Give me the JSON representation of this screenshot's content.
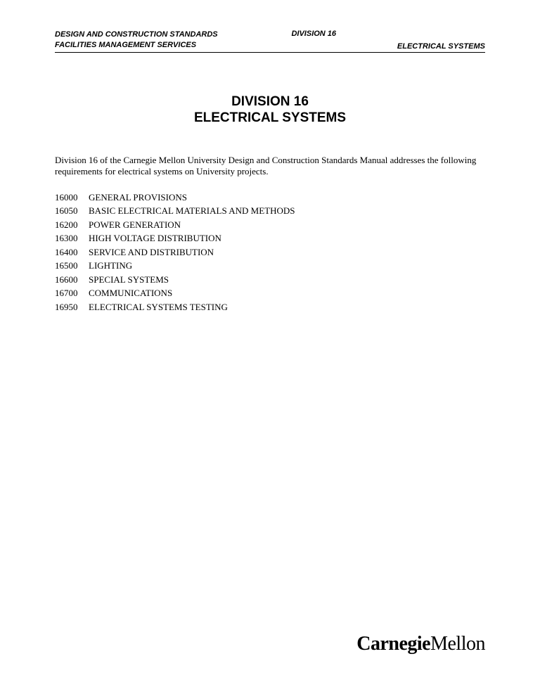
{
  "header": {
    "left_line1": "DESIGN AND CONSTRUCTION STANDARDS",
    "left_line2": "FACILITIES MANAGEMENT SERVICES",
    "center": "DIVISION 16",
    "right": "ELECTRICAL SYSTEMS"
  },
  "title": {
    "line1": "DIVISION 16",
    "line2": "ELECTRICAL SYSTEMS"
  },
  "intro": "Division 16 of the Carnegie Mellon University Design and Construction Standards Manual addresses the following requirements for electrical systems on University projects.",
  "toc": [
    {
      "code": "16000",
      "label": "GENERAL PROVISIONS"
    },
    {
      "code": "16050",
      "label": "BASIC ELECTRICAL MATERIALS AND METHODS"
    },
    {
      "code": "16200",
      "label": "POWER GENERATION"
    },
    {
      "code": "16300",
      "label": "HIGH VOLTAGE DISTRIBUTION"
    },
    {
      "code": "16400",
      "label": "SERVICE AND DISTRIBUTION"
    },
    {
      "code": "16500",
      "label": "LIGHTING"
    },
    {
      "code": "16600",
      "label": "SPECIAL SYSTEMS"
    },
    {
      "code": "16700",
      "label": "COMMUNICATIONS"
    },
    {
      "code": "16950",
      "label": "ELECTRICAL SYSTEMS TESTING"
    }
  ],
  "logo": {
    "bold": "Carnegie",
    "light": "Mellon"
  }
}
